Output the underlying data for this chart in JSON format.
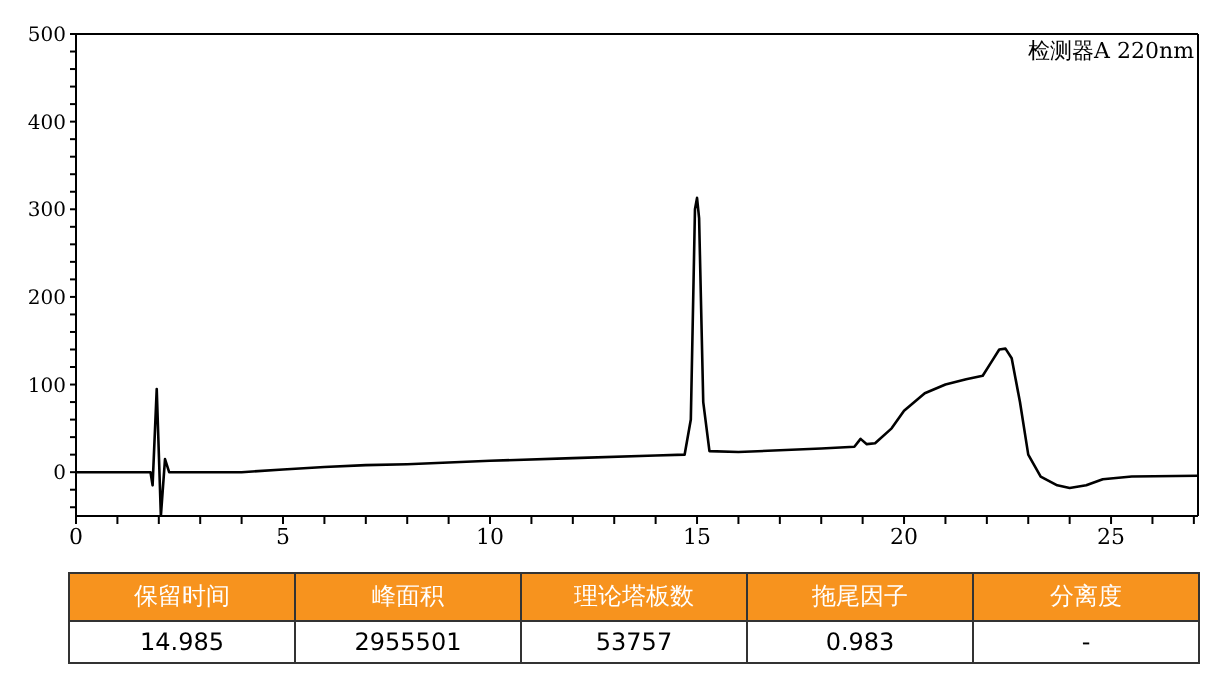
{
  "chart_data": {
    "type": "line",
    "x": [
      0,
      1.8,
      1.85,
      1.95,
      2.05,
      2.15,
      2.25,
      2.4,
      4,
      5,
      6,
      7,
      8,
      10,
      12,
      14,
      14.7,
      14.85,
      14.95,
      15.0,
      15.05,
      15.15,
      15.3,
      16,
      18,
      18.8,
      18.95,
      19.1,
      19.3,
      19.7,
      20,
      20.5,
      21,
      21.5,
      21.9,
      22.1,
      22.3,
      22.45,
      22.6,
      22.8,
      23,
      23.3,
      23.7,
      24,
      24.4,
      24.8,
      25.5,
      27.1
    ],
    "series": [
      {
        "color": "#000000",
        "values": [
          0,
          0,
          -15,
          95,
          -50,
          15,
          0,
          0,
          0,
          3,
          6,
          8,
          9,
          13,
          16,
          19,
          20,
          60,
          300,
          313,
          290,
          80,
          24,
          23,
          27,
          29,
          38,
          32,
          33,
          50,
          70,
          90,
          100,
          106,
          110,
          125,
          140,
          141,
          130,
          80,
          20,
          -5,
          -15,
          -18,
          -15,
          -8,
          -5,
          -4
        ]
      }
    ],
    "xlim": [
      0,
      27.1
    ],
    "ylim": [
      -50,
      500
    ],
    "xticks": [
      0,
      {
        "value": 1,
        "label": null
      },
      {
        "value": 2,
        "label": null
      },
      {
        "value": 3,
        "label": null
      },
      {
        "value": 4,
        "label": null
      },
      5,
      {
        "value": 6,
        "label": null
      },
      {
        "value": 7,
        "label": null
      },
      {
        "value": 8,
        "label": null
      },
      {
        "value": 9,
        "label": null
      },
      10,
      {
        "value": 11,
        "label": null
      },
      {
        "value": 12,
        "label": null
      },
      {
        "value": 13,
        "label": null
      },
      {
        "value": 14,
        "label": null
      },
      15,
      {
        "value": 16,
        "label": null
      },
      {
        "value": 17,
        "label": null
      },
      {
        "value": 18,
        "label": null
      },
      {
        "value": 19,
        "label": null
      },
      20,
      {
        "value": 21,
        "label": null
      },
      {
        "value": 22,
        "label": null
      },
      {
        "value": 23,
        "label": null
      },
      {
        "value": 24,
        "label": null
      },
      25,
      {
        "value": 26,
        "label": null
      },
      {
        "value": 27,
        "label": null
      }
    ],
    "yticks": [
      {
        "value": -40,
        "label": null
      },
      {
        "value": -20,
        "label": null
      },
      0,
      {
        "value": 20,
        "label": null
      },
      {
        "value": 40,
        "label": null
      },
      {
        "value": 60,
        "label": null
      },
      {
        "value": 80,
        "label": null
      },
      100,
      {
        "value": 120,
        "label": null
      },
      {
        "value": 140,
        "label": null
      },
      {
        "value": 160,
        "label": null
      },
      {
        "value": 180,
        "label": null
      },
      200,
      {
        "value": 220,
        "label": null
      },
      {
        "value": 240,
        "label": null
      },
      {
        "value": 260,
        "label": null
      },
      {
        "value": 280,
        "label": null
      },
      300,
      {
        "value": 320,
        "label": null
      },
      {
        "value": 340,
        "label": null
      },
      {
        "value": 360,
        "label": null
      },
      {
        "value": 380,
        "label": null
      },
      400,
      {
        "value": 420,
        "label": null
      },
      {
        "value": 440,
        "label": null
      },
      {
        "value": 460,
        "label": null
      },
      {
        "value": 480,
        "label": null
      },
      500
    ],
    "annotations": [
      "检测器A 220nm",
      "保留时间",
      "峰面积",
      "理论塔板数",
      "拖尾因子",
      "分离度",
      "14.985",
      "2955501",
      "53757",
      "0.983",
      "-"
    ],
    "grid": false,
    "legend": false,
    "marker": "none",
    "line_style": "solid"
  }
}
